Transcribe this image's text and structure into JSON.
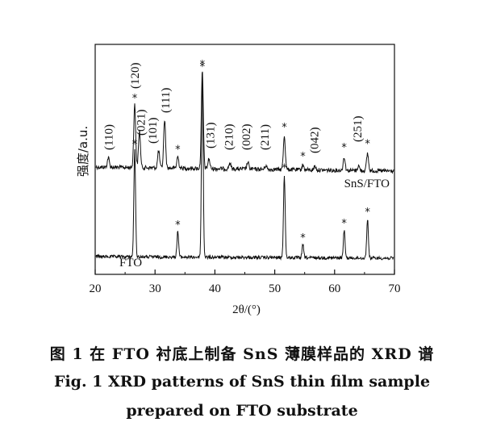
{
  "chart_data": {
    "type": "line",
    "xlabel": "2θ/(°)",
    "ylabel": "强度/a.u.",
    "xlim": [
      20,
      70
    ],
    "xticks": [
      20,
      30,
      40,
      50,
      60,
      70
    ],
    "grid": false,
    "series": [
      {
        "name": "SnS/FTO",
        "peaks": [
          {
            "x": 22.2,
            "h": 0.1
          },
          {
            "x": 26.6,
            "h": 0.65
          },
          {
            "x": 27.4,
            "h": 0.38
          },
          {
            "x": 30.6,
            "h": 0.18
          },
          {
            "x": 31.6,
            "h": 0.5
          },
          {
            "x": 33.8,
            "h": 0.12
          },
          {
            "x": 37.9,
            "h": 1.0
          },
          {
            "x": 39.0,
            "h": 0.1
          },
          {
            "x": 42.5,
            "h": 0.06
          },
          {
            "x": 45.5,
            "h": 0.07
          },
          {
            "x": 48.5,
            "h": 0.04
          },
          {
            "x": 51.6,
            "h": 0.35
          },
          {
            "x": 54.7,
            "h": 0.05
          },
          {
            "x": 56.7,
            "h": 0.04
          },
          {
            "x": 61.6,
            "h": 0.14
          },
          {
            "x": 64.0,
            "h": 0.05
          },
          {
            "x": 65.5,
            "h": 0.18
          }
        ]
      },
      {
        "name": "FTO",
        "peaks": [
          {
            "x": 26.6,
            "h": 0.58
          },
          {
            "x": 33.8,
            "h": 0.14
          },
          {
            "x": 37.9,
            "h": 1.0
          },
          {
            "x": 51.6,
            "h": 0.45
          },
          {
            "x": 54.7,
            "h": 0.07
          },
          {
            "x": 61.6,
            "h": 0.15
          },
          {
            "x": 65.5,
            "h": 0.21
          }
        ]
      }
    ],
    "annotations": [
      {
        "text": "(110)",
        "x": 22.2
      },
      {
        "text": "(120)",
        "x": 26.6
      },
      {
        "text": "(021)",
        "x": 27.6
      },
      {
        "text": "(101)",
        "x": 29.6
      },
      {
        "text": "(111)",
        "x": 31.7
      },
      {
        "text": "(131)",
        "x": 39.2
      },
      {
        "text": "(210)",
        "x": 42.3
      },
      {
        "text": "(002)",
        "x": 45.2
      },
      {
        "text": "(211)",
        "x": 48.3
      },
      {
        "text": "(042)",
        "x": 56.6
      },
      {
        "text": "(251)",
        "x": 63.8
      }
    ],
    "stars_top": [
      26.6,
      33.8,
      37.9,
      51.6,
      54.7,
      61.6,
      65.5
    ],
    "stars_bottom": [
      26.6,
      33.8,
      37.9,
      51.6,
      54.7,
      61.6,
      65.5
    ]
  },
  "captions": {
    "chinese": "图 1    在 FTO 衬底上制备 SnS 薄膜样品的 XRD 谱",
    "english_line1": "Fig. 1    XRD patterns of SnS thin film sample",
    "english_line2": "prepared on FTO substrate"
  }
}
